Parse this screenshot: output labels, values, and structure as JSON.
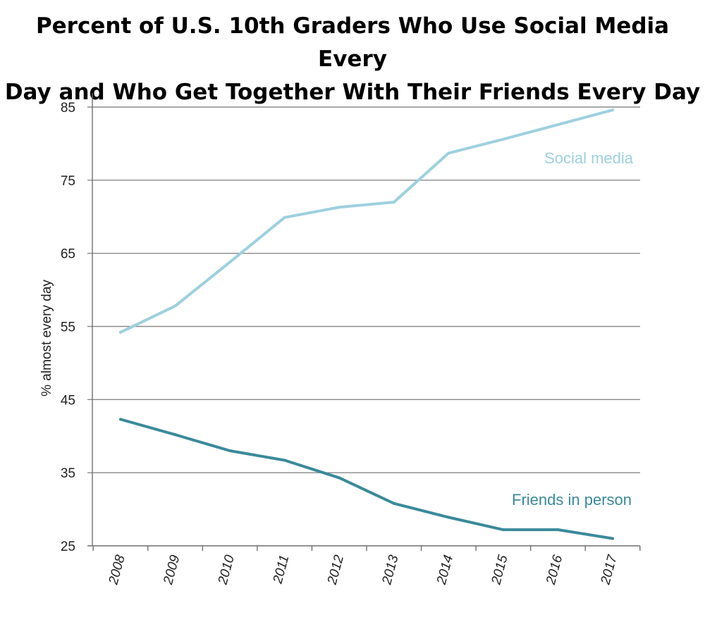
{
  "chart_data": {
    "type": "line",
    "title_lines": [
      "Percent of U.S. 10th Graders Who Use Social Media Every",
      "Day and Who Get Together With Their Friends Every Day"
    ],
    "xlabel": "",
    "ylabel": "% almost every day",
    "categories": [
      "2008",
      "2009",
      "2010",
      "2011",
      "2012",
      "2013",
      "2014",
      "2015",
      "2016",
      "2017"
    ],
    "yticks": [
      25,
      35,
      45,
      55,
      65,
      75,
      85
    ],
    "ylim": [
      25,
      85
    ],
    "grid": true,
    "series": [
      {
        "name": "Social media",
        "color": "#9dd0df",
        "values": [
          54.2,
          57.8,
          63.8,
          69.9,
          71.3,
          72.0,
          78.7,
          80.6,
          82.6,
          84.6
        ]
      },
      {
        "name": "Friends in person",
        "color": "#3a8a9a",
        "values": [
          42.3,
          40.2,
          38.0,
          36.7,
          34.3,
          30.8,
          28.9,
          27.2,
          27.2,
          26.0
        ]
      }
    ]
  }
}
